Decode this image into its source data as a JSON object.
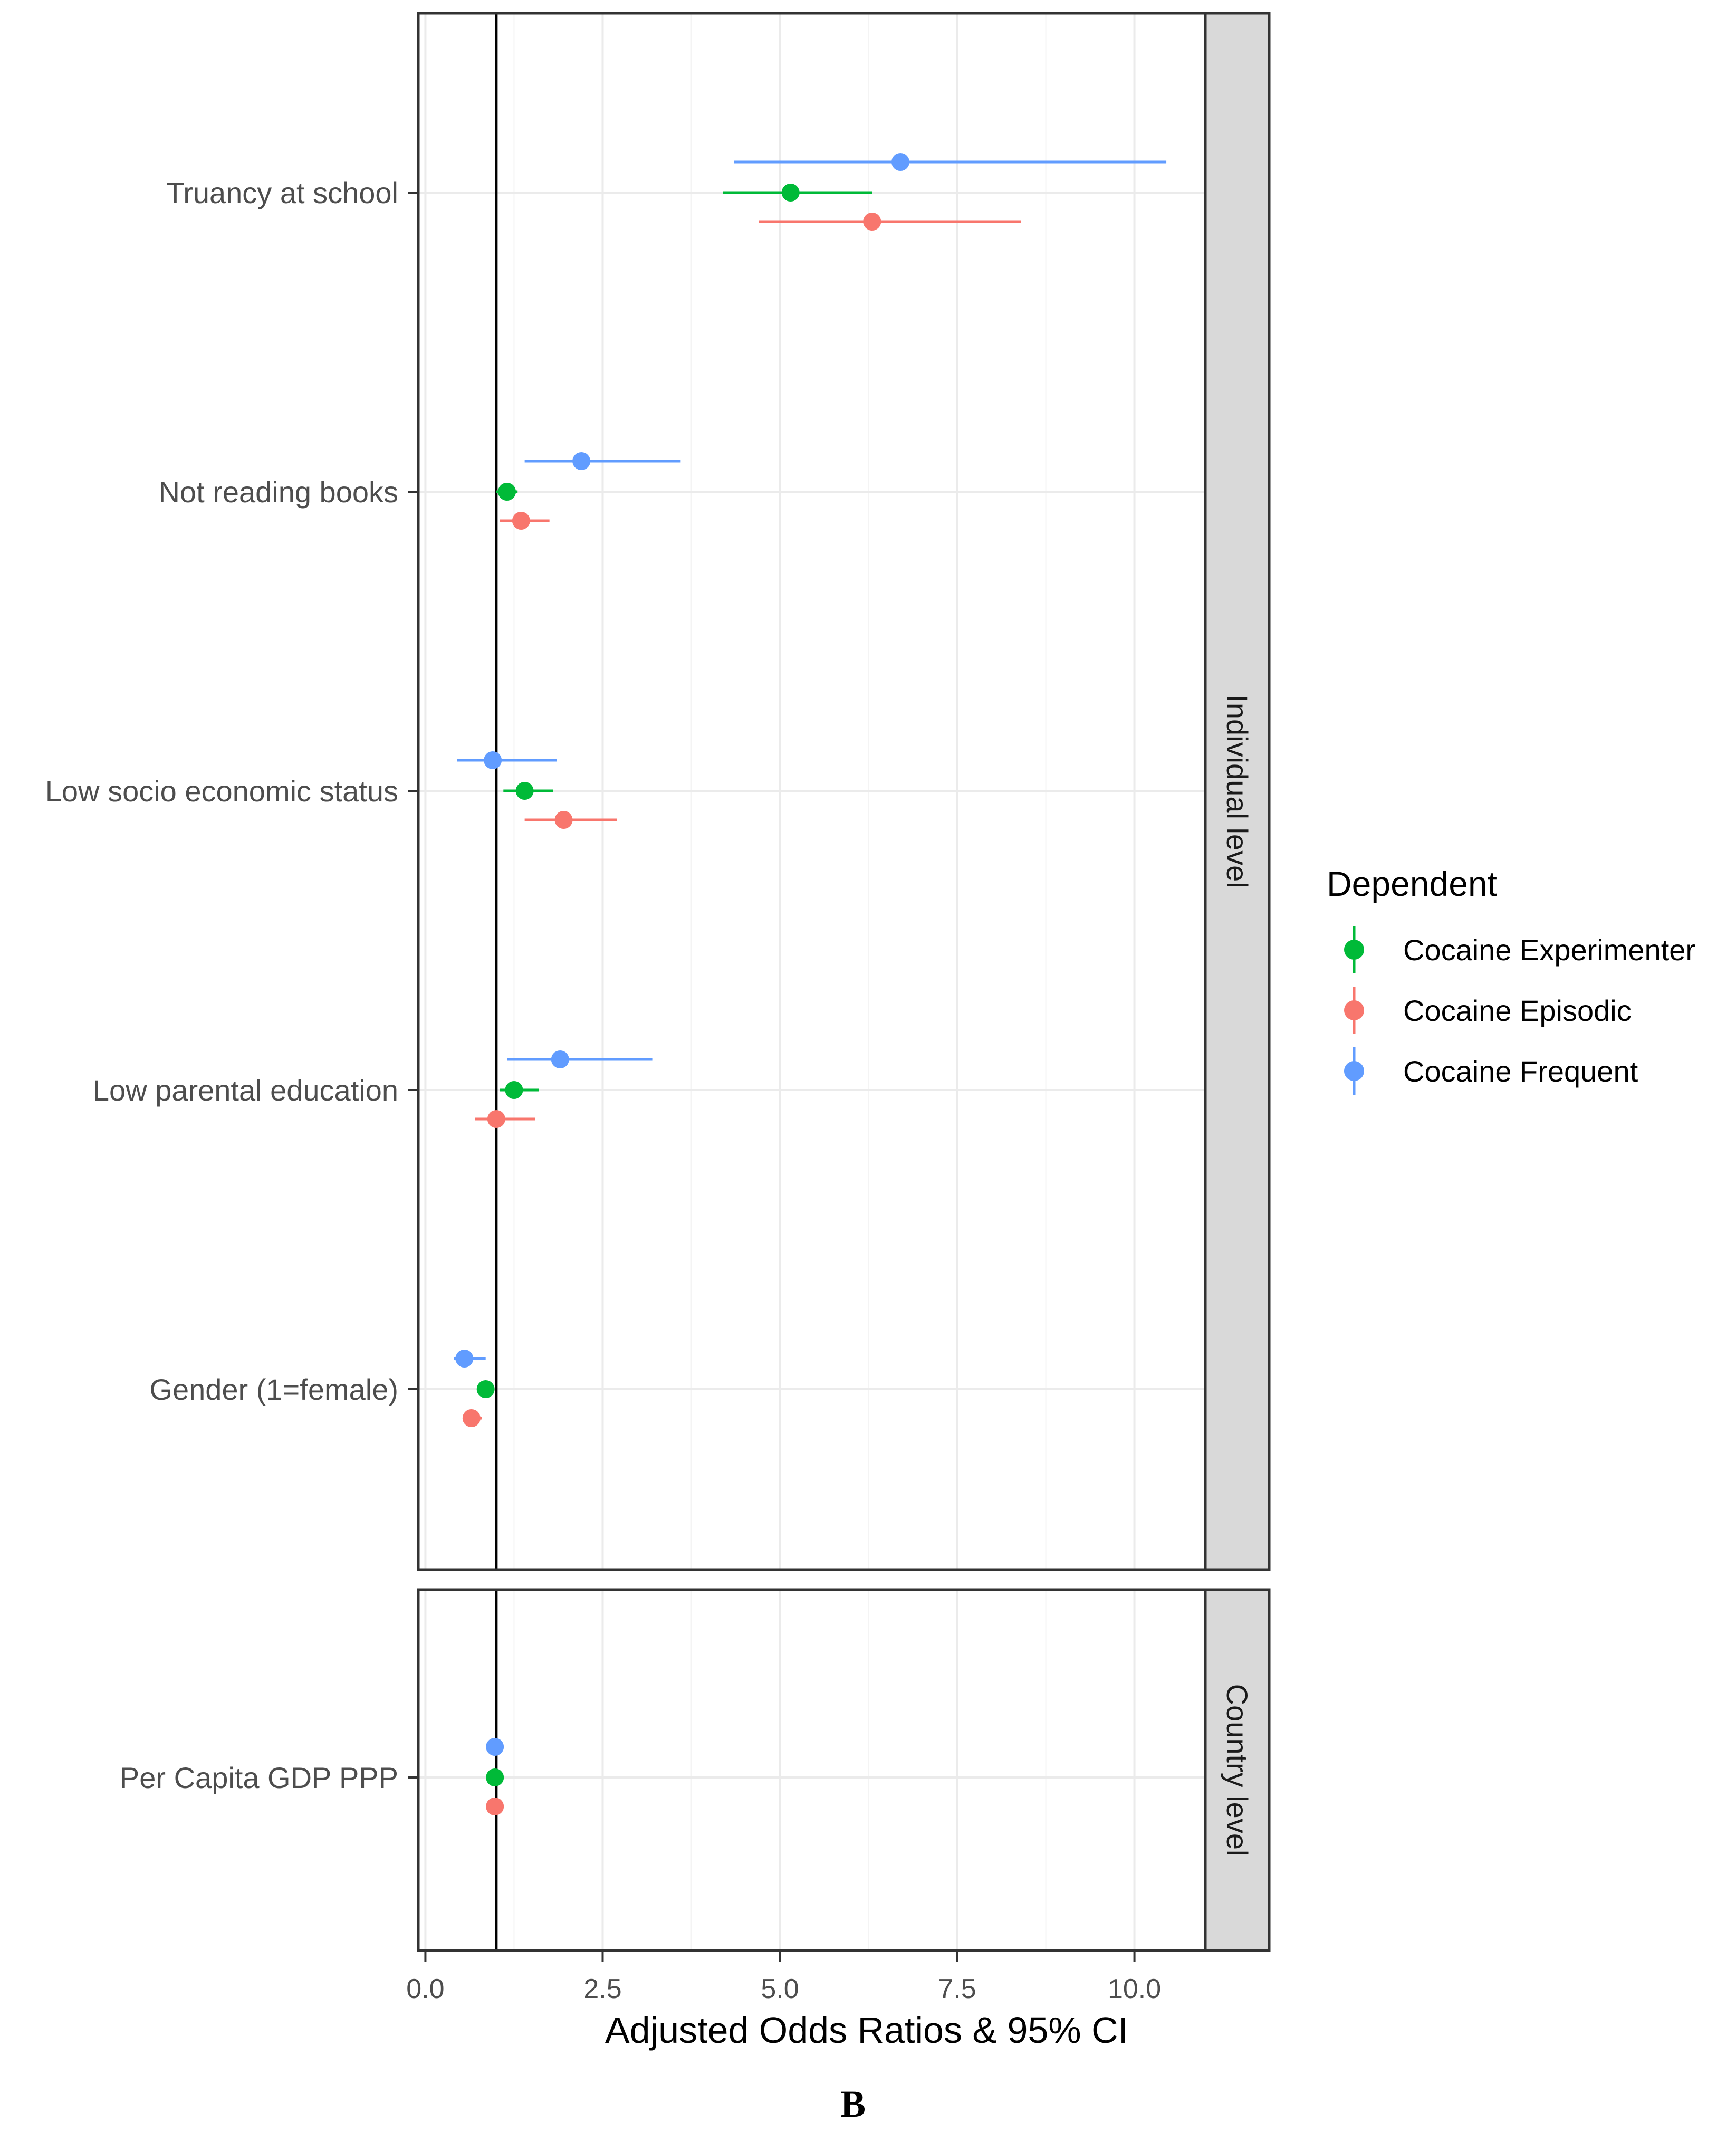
{
  "chart_data": {
    "type": "forest",
    "panel_letter": "B",
    "xlabel": "Adjusted Odds Ratios & 95% CI",
    "x_ticks": [
      0.0,
      2.5,
      5.0,
      7.5,
      10.0
    ],
    "x_tick_labels": [
      "0.0",
      "2.5",
      "5.0",
      "7.5",
      "10.0"
    ],
    "xlim": [
      -0.1,
      11.0
    ],
    "reference_line": 1.0,
    "legend": {
      "title": "Dependent",
      "position": "right",
      "entries": [
        "Cocaine Experimenter",
        "Cocaine Episodic",
        "Cocaine Frequent"
      ]
    },
    "colors": {
      "Cocaine Experimenter": "#00BA38",
      "Cocaine Episodic": "#F8766D",
      "Cocaine Frequent": "#619CFF"
    },
    "facets": [
      {
        "label": "Individual level",
        "rows": [
          {
            "label": "Truancy at school",
            "estimates": [
              {
                "series": "Cocaine Frequent",
                "or": 6.7,
                "lo": 4.35,
                "hi": 10.45
              },
              {
                "series": "Cocaine Experimenter",
                "or": 5.15,
                "lo": 4.2,
                "hi": 6.3
              },
              {
                "series": "Cocaine Episodic",
                "or": 6.3,
                "lo": 4.7,
                "hi": 8.4
              }
            ]
          },
          {
            "label": "Not reading books",
            "estimates": [
              {
                "series": "Cocaine Frequent",
                "or": 2.2,
                "lo": 1.4,
                "hi": 3.6
              },
              {
                "series": "Cocaine Experimenter",
                "or": 1.15,
                "lo": 1.0,
                "hi": 1.3
              },
              {
                "series": "Cocaine Episodic",
                "or": 1.35,
                "lo": 1.05,
                "hi": 1.75
              }
            ]
          },
          {
            "label": "Low socio economic status",
            "estimates": [
              {
                "series": "Cocaine Frequent",
                "or": 0.95,
                "lo": 0.45,
                "hi": 1.85
              },
              {
                "series": "Cocaine Experimenter",
                "or": 1.4,
                "lo": 1.1,
                "hi": 1.8
              },
              {
                "series": "Cocaine Episodic",
                "or": 1.95,
                "lo": 1.4,
                "hi": 2.7
              }
            ]
          },
          {
            "label": "Low parental education",
            "estimates": [
              {
                "series": "Cocaine Frequent",
                "or": 1.9,
                "lo": 1.15,
                "hi": 3.2
              },
              {
                "series": "Cocaine Experimenter",
                "or": 1.25,
                "lo": 1.05,
                "hi": 1.6
              },
              {
                "series": "Cocaine Episodic",
                "or": 1.0,
                "lo": 0.7,
                "hi": 1.55
              }
            ]
          },
          {
            "label": "Gender (1=female)",
            "estimates": [
              {
                "series": "Cocaine Frequent",
                "or": 0.55,
                "lo": 0.4,
                "hi": 0.85
              },
              {
                "series": "Cocaine Experimenter",
                "or": 0.85,
                "lo": 0.75,
                "hi": 0.95
              },
              {
                "series": "Cocaine Episodic",
                "or": 0.65,
                "lo": 0.55,
                "hi": 0.8
              }
            ]
          }
        ]
      },
      {
        "label": "Country level",
        "rows": [
          {
            "label": "Per Capita GDP PPP",
            "estimates": [
              {
                "series": "Cocaine Frequent",
                "or": 0.98,
                "lo": 0.93,
                "hi": 1.03
              },
              {
                "series": "Cocaine Experimenter",
                "or": 0.98,
                "lo": 0.93,
                "hi": 1.03
              },
              {
                "series": "Cocaine Episodic",
                "or": 0.98,
                "lo": 0.93,
                "hi": 1.03
              }
            ]
          }
        ]
      }
    ]
  }
}
